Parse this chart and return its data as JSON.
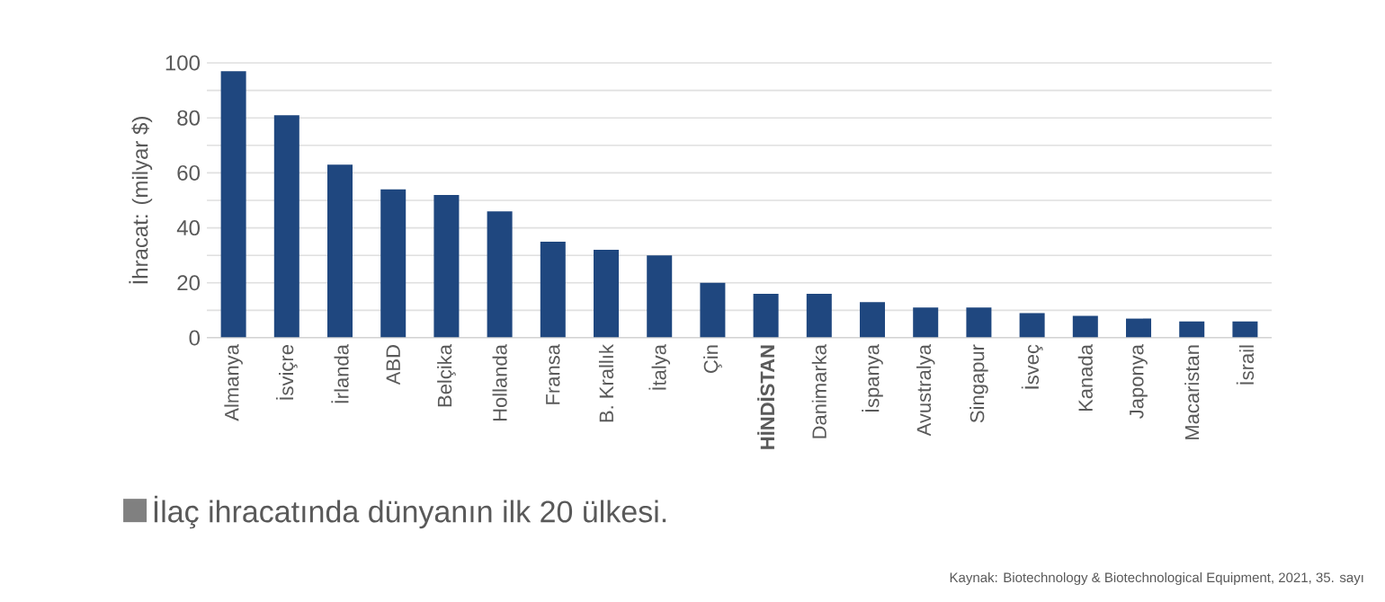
{
  "chart_data": {
    "type": "bar",
    "title": "İlaç ihracatında dünyanın ilk 20 ülkesi.",
    "ylabel": "İhracat: (milyar $)",
    "categories": [
      "Almanya",
      "İsviçre",
      "İrlanda",
      "ABD",
      "Belçika",
      "Hollanda",
      "Fransa",
      "B. Krallık",
      "İtalya",
      "Çin",
      "**HİNDİSTAN**",
      "Danimarka",
      "İspanya",
      "Avustralya",
      "Singapur",
      "İsveç",
      "Kanada",
      "Japonya",
      "Macaristan",
      "İsrail"
    ],
    "values": [
      97,
      81,
      63,
      54,
      52,
      46,
      35,
      32,
      30,
      20,
      16,
      16,
      13,
      11,
      11,
      9,
      8,
      7,
      6,
      6
    ],
    "color": "#1f477f",
    "ylim": [
      0,
      100
    ],
    "yticks": [
      0,
      {
        "value": 10,
        "label": null
      },
      20,
      {
        "value": 30,
        "label": null
      },
      40,
      {
        "value": 50,
        "label": null
      },
      60,
      {
        "value": 70,
        "label": null
      },
      80,
      {
        "value": 90,
        "label": null
      },
      100
    ],
    "grid": "y",
    "annotations": [
      "Kaynak: Biotechnology & Biotechnological Equipment, 2021, 35. sayı"
    ]
  }
}
